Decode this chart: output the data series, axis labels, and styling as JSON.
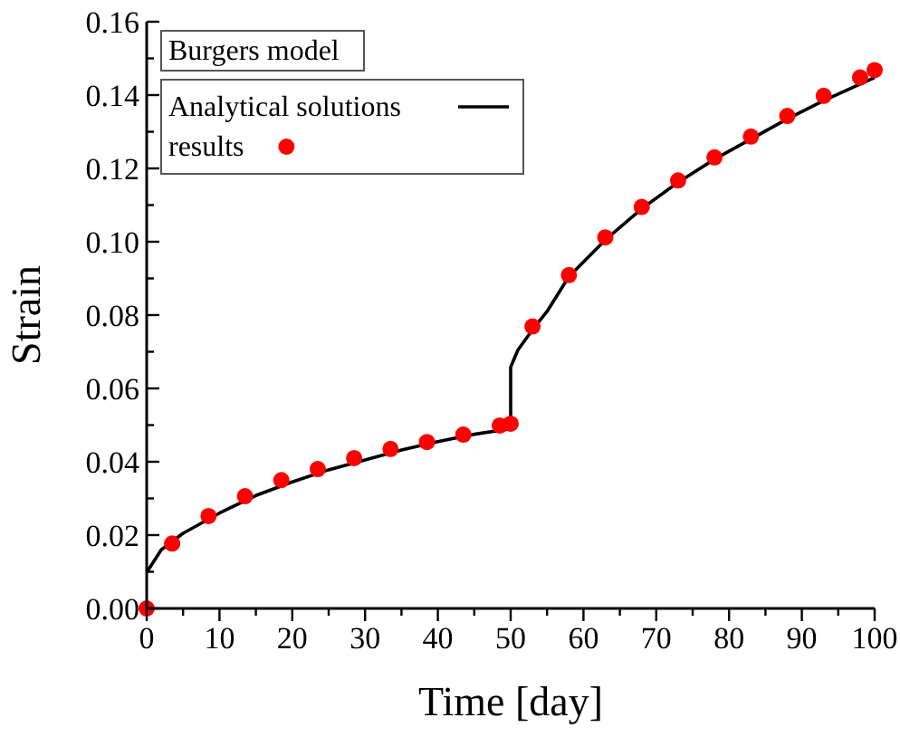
{
  "chart_data": {
    "type": "line",
    "xlabel": "Time [day]",
    "ylabel": "Strain",
    "annotations": [
      "Burgers model"
    ],
    "xlim": [
      0,
      100
    ],
    "ylim": [
      0,
      0.16
    ],
    "xticks": [
      0,
      {
        "value": 5,
        "label": null
      },
      10,
      {
        "value": 15,
        "label": null
      },
      20,
      {
        "value": 25,
        "label": null
      },
      30,
      {
        "value": 35,
        "label": null
      },
      40,
      {
        "value": 45,
        "label": null
      },
      50,
      {
        "value": 55,
        "label": null
      },
      60,
      {
        "value": 65,
        "label": null
      },
      70,
      {
        "value": 75,
        "label": null
      },
      80,
      {
        "value": 85,
        "label": null
      },
      90,
      {
        "value": 95,
        "label": null
      },
      100
    ],
    "yticks": [
      {
        "value": 0,
        "label": "0.00"
      },
      {
        "value": 0.01,
        "label": null
      },
      {
        "value": 0.02,
        "label": "0.02"
      },
      {
        "value": 0.03,
        "label": null
      },
      {
        "value": 0.04,
        "label": "0.04"
      },
      {
        "value": 0.05,
        "label": null
      },
      {
        "value": 0.06,
        "label": "0.06"
      },
      {
        "value": 0.07,
        "label": null
      },
      {
        "value": 0.08,
        "label": "0.08"
      },
      {
        "value": 0.09,
        "label": null
      },
      {
        "value": 0.1,
        "label": "0.10"
      },
      {
        "value": 0.11,
        "label": null
      },
      {
        "value": 0.12,
        "label": "0.12"
      },
      {
        "value": 0.13,
        "label": null
      },
      {
        "value": 0.14,
        "label": "0.14"
      },
      {
        "value": 0.15,
        "label": null
      },
      {
        "value": 0.16,
        "label": "0.16"
      }
    ],
    "grid": false,
    "legend": "top left",
    "series": [
      {
        "name": "Analytical solutions",
        "color": "#000000",
        "marker": "none",
        "line_style": "solid",
        "x": [
          0,
          2,
          5,
          10,
          15,
          20,
          25,
          30,
          35,
          40,
          45,
          50,
          50,
          51,
          53,
          55,
          58,
          63,
          68,
          73,
          78,
          83,
          88,
          93,
          100
        ],
        "values": [
          0.0098,
          0.016,
          0.0205,
          0.026,
          0.0308,
          0.0345,
          0.0378,
          0.0405,
          0.0432,
          0.0455,
          0.0475,
          0.049,
          0.0658,
          0.0705,
          0.076,
          0.081,
          0.0905,
          0.1005,
          0.109,
          0.1162,
          0.1225,
          0.128,
          0.1335,
          0.1385,
          0.1448
        ]
      },
      {
        "name": "results",
        "type": "scatter",
        "color": "#ff0000",
        "marker": "circle",
        "x": [
          0,
          3.5,
          8.5,
          13.5,
          18.5,
          23.5,
          28.5,
          33.5,
          38.5,
          43.5,
          48.5,
          50,
          53,
          58,
          63,
          68,
          73,
          78,
          83,
          88,
          93,
          98,
          100
        ],
        "values": [
          0,
          0.0177,
          0.0252,
          0.0306,
          0.035,
          0.038,
          0.041,
          0.0435,
          0.0454,
          0.0474,
          0.0499,
          0.0504,
          0.0769,
          0.0909,
          0.1012,
          0.1095,
          0.1167,
          0.123,
          0.1287,
          0.1343,
          0.1398,
          0.1448,
          0.1468
        ]
      }
    ]
  }
}
